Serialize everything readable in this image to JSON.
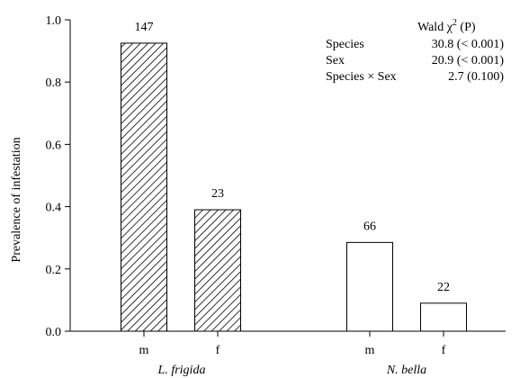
{
  "chart_data": {
    "type": "bar",
    "ylabel": "Prevalence of infestation",
    "ylim": [
      0,
      1.0
    ],
    "yticks": [
      "0.0",
      "0.2",
      "0.4",
      "0.6",
      "0.8",
      "1.0"
    ],
    "grid": false,
    "groups": [
      {
        "name": "L. frigida",
        "fill": "hatched",
        "bars": [
          {
            "category": "m",
            "value": 0.925,
            "n_label": "147"
          },
          {
            "category": "f",
            "value": 0.39,
            "n_label": "23"
          }
        ]
      },
      {
        "name": "N. bella",
        "fill": "open",
        "bars": [
          {
            "category": "m",
            "value": 0.285,
            "n_label": "66"
          },
          {
            "category": "f",
            "value": 0.09,
            "n_label": "22"
          }
        ]
      }
    ],
    "stats_table": {
      "header_pre": "Wald χ",
      "header_sup": "2",
      "header_post": " (P)",
      "rows": [
        {
          "term": "Species",
          "value": "30.8 (< 0.001)"
        },
        {
          "term": "Sex",
          "value": "20.9 (< 0.001)"
        },
        {
          "term": "Species × Sex",
          "value": "2.7 (0.100)"
        }
      ]
    }
  }
}
